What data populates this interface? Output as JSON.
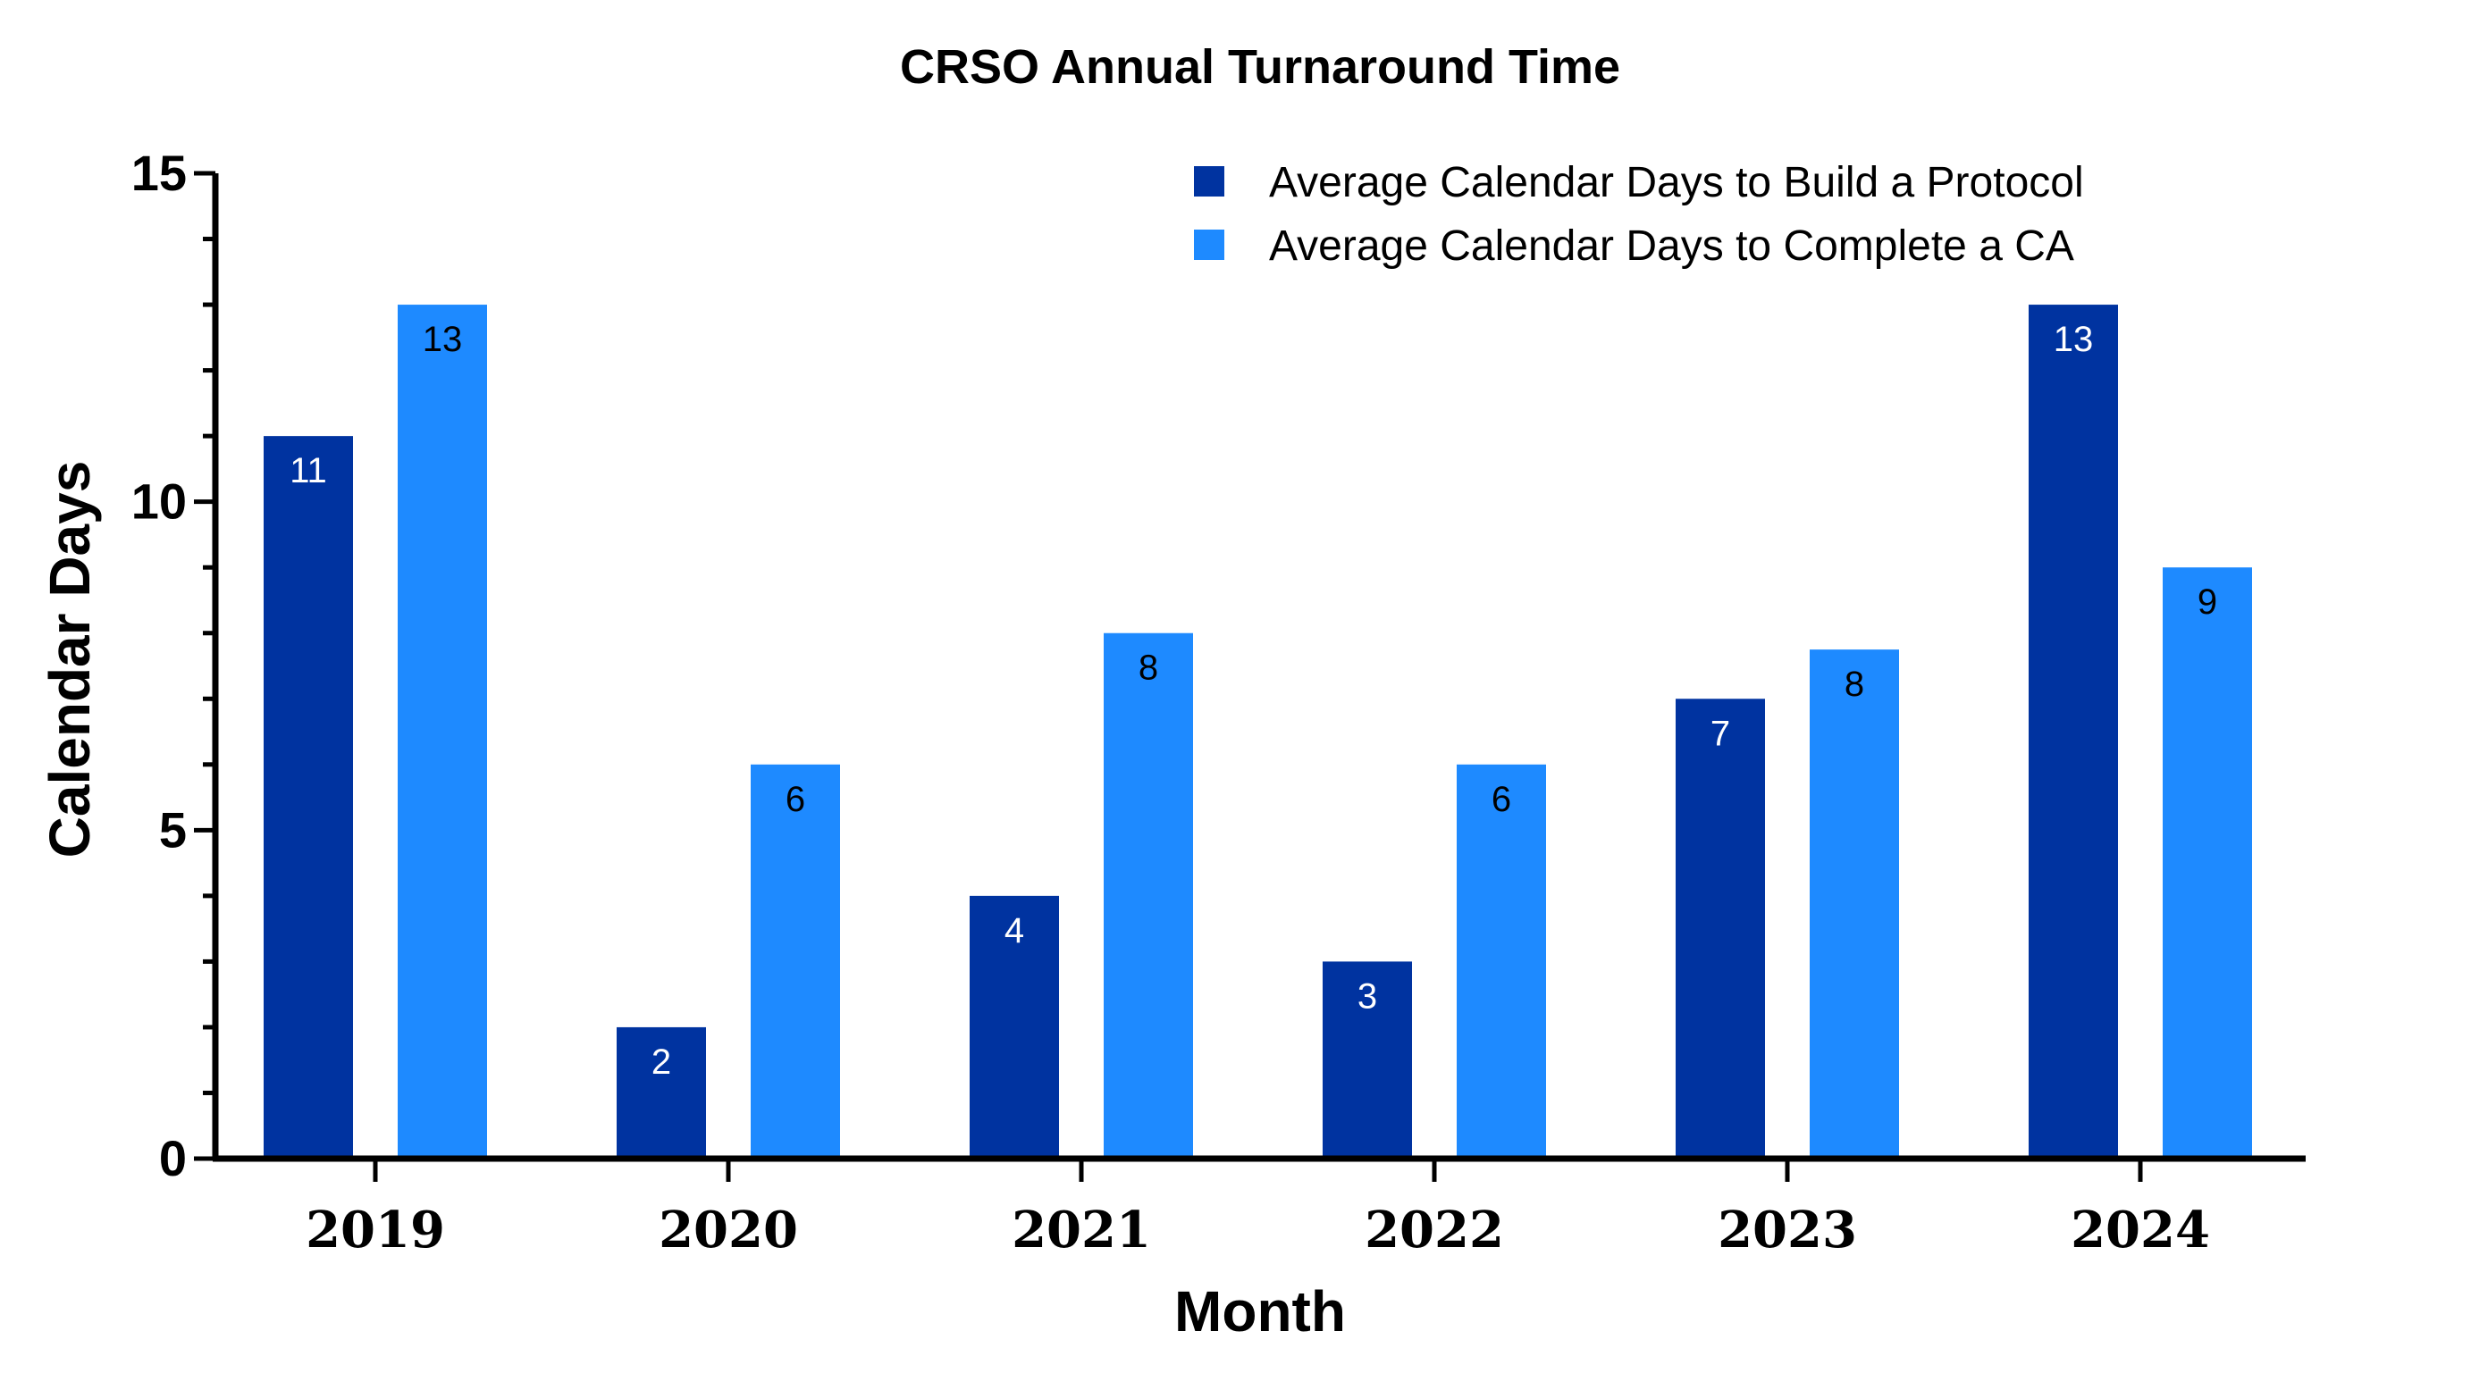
{
  "chart_data": {
    "type": "bar",
    "title": "CRSO Annual Turnaround Time",
    "xlabel": "Month",
    "ylabel": "Calendar Days",
    "categories": [
      "2019",
      "2020",
      "2021",
      "2022",
      "2023",
      "2024"
    ],
    "ylim": [
      0,
      15
    ],
    "yticks": [
      "0",
      "5",
      "10",
      "15"
    ],
    "legend_position": "top-right",
    "grid": false,
    "series": [
      {
        "name": "Average Calendar Days to Build a Protocol",
        "color": "#0033A0",
        "label_color": "#ffffff",
        "values": [
          11,
          2,
          4,
          3,
          7,
          13
        ],
        "labels": [
          "11",
          "2",
          "4",
          "3",
          "7",
          "13"
        ]
      },
      {
        "name": "Average Calendar Days to Complete a CA",
        "color": "#1E8AFF",
        "label_color": "#000000",
        "values": [
          13,
          6,
          8,
          6,
          7.75,
          9
        ],
        "labels": [
          "13",
          "6",
          "8",
          "6",
          "8",
          "9"
        ]
      }
    ]
  }
}
